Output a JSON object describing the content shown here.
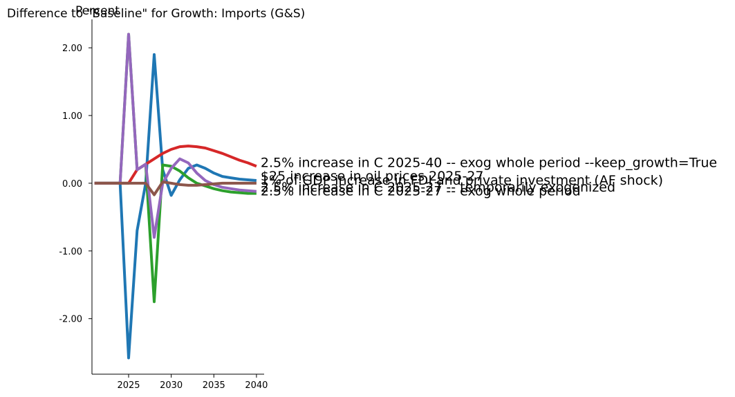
{
  "chart_data": {
    "type": "line",
    "title": "Difference to \"Baseline\" for Growth: Imports (G&S)",
    "ylabel": "Percent",
    "xlabel": "",
    "xlim": [
      2020.7,
      2040.9
    ],
    "ylim": [
      -2.82,
      2.42
    ],
    "x_ticks": [
      2025,
      2030,
      2035,
      2040
    ],
    "y_ticks": [
      2.0,
      1.0,
      0.0,
      -1.0,
      -2.0
    ],
    "y_tick_labels": [
      "2.00",
      "1.00",
      "0.00",
      "-1.00",
      "-2.00"
    ],
    "grid": false,
    "legend": "labels at line ends (right)",
    "x": [
      2021,
      2022,
      2023,
      2024,
      2025,
      2026,
      2027,
      2028,
      2029,
      2030,
      2031,
      2032,
      2033,
      2034,
      2035,
      2036,
      2037,
      2038,
      2039,
      2040
    ],
    "series": [
      {
        "name": "$25 increase in oil prices 2025-27",
        "color": "#1f77b4",
        "values": [
          0.0,
          0.0,
          0.0,
          0.0,
          -2.58,
          -0.7,
          0.0,
          1.9,
          0.2,
          -0.18,
          0.05,
          0.22,
          0.27,
          0.22,
          0.15,
          0.1,
          0.08,
          0.06,
          0.05,
          0.04
        ]
      },
      {
        "name": "2.5% increase in C 2025-27 -- exog whole period",
        "color": "#2ca02c",
        "values": [
          0.0,
          0.0,
          0.0,
          0.0,
          2.2,
          0.2,
          0.28,
          -1.75,
          0.27,
          0.25,
          0.18,
          0.08,
          0.0,
          -0.04,
          -0.08,
          -0.11,
          -0.13,
          -0.14,
          -0.15,
          -0.15
        ]
      },
      {
        "name": "2.5% increase in C 2025-40 -- exog whole period --keep_growth=True",
        "color": "#d62728",
        "values": [
          0.0,
          0.0,
          0.0,
          0.0,
          0.0,
          0.2,
          0.28,
          0.36,
          0.44,
          0.5,
          0.54,
          0.55,
          0.54,
          0.52,
          0.48,
          0.44,
          0.39,
          0.34,
          0.3,
          0.25
        ]
      },
      {
        "name": "2.5% increase in C 2025-27 -- temporarily exogenized",
        "color": "#9467bd",
        "values": [
          0.0,
          0.0,
          0.0,
          0.0,
          2.2,
          0.2,
          0.28,
          -0.8,
          0.0,
          0.22,
          0.36,
          0.3,
          0.15,
          0.04,
          -0.02,
          -0.06,
          -0.08,
          -0.1,
          -0.11,
          -0.12
        ]
      },
      {
        "name": "1% of GDP increase in FDI and private investment (AF shock)",
        "color": "#8c564b",
        "values": [
          0.0,
          0.0,
          0.0,
          0.0,
          0.0,
          0.0,
          0.0,
          -0.17,
          0.02,
          0.0,
          -0.02,
          -0.03,
          -0.03,
          -0.02,
          -0.01,
          0.0,
          0.0,
          0.0,
          0.0,
          0.0
        ]
      }
    ],
    "end_labels": [
      {
        "text": "2.5% increase in C 2025-40 -- exog whole period --keep_growth=True",
        "color": "#000000",
        "y": 0.31
      },
      {
        "text": "1% of GDP increase in FDI and private investment (AF shock)",
        "color": "#000000",
        "y": 0.05
      },
      {
        "text": "$25 increase in oil prices 2025-27",
        "color": "#000000",
        "y": 0.11
      },
      {
        "text": "2.5% increase in C 2025-27 -- temporarily exogenized",
        "color": "#000000",
        "y": -0.05
      },
      {
        "text": "2.5% increase in C 2025-27 -- exog whole period",
        "color": "#000000",
        "y": -0.11
      }
    ]
  }
}
